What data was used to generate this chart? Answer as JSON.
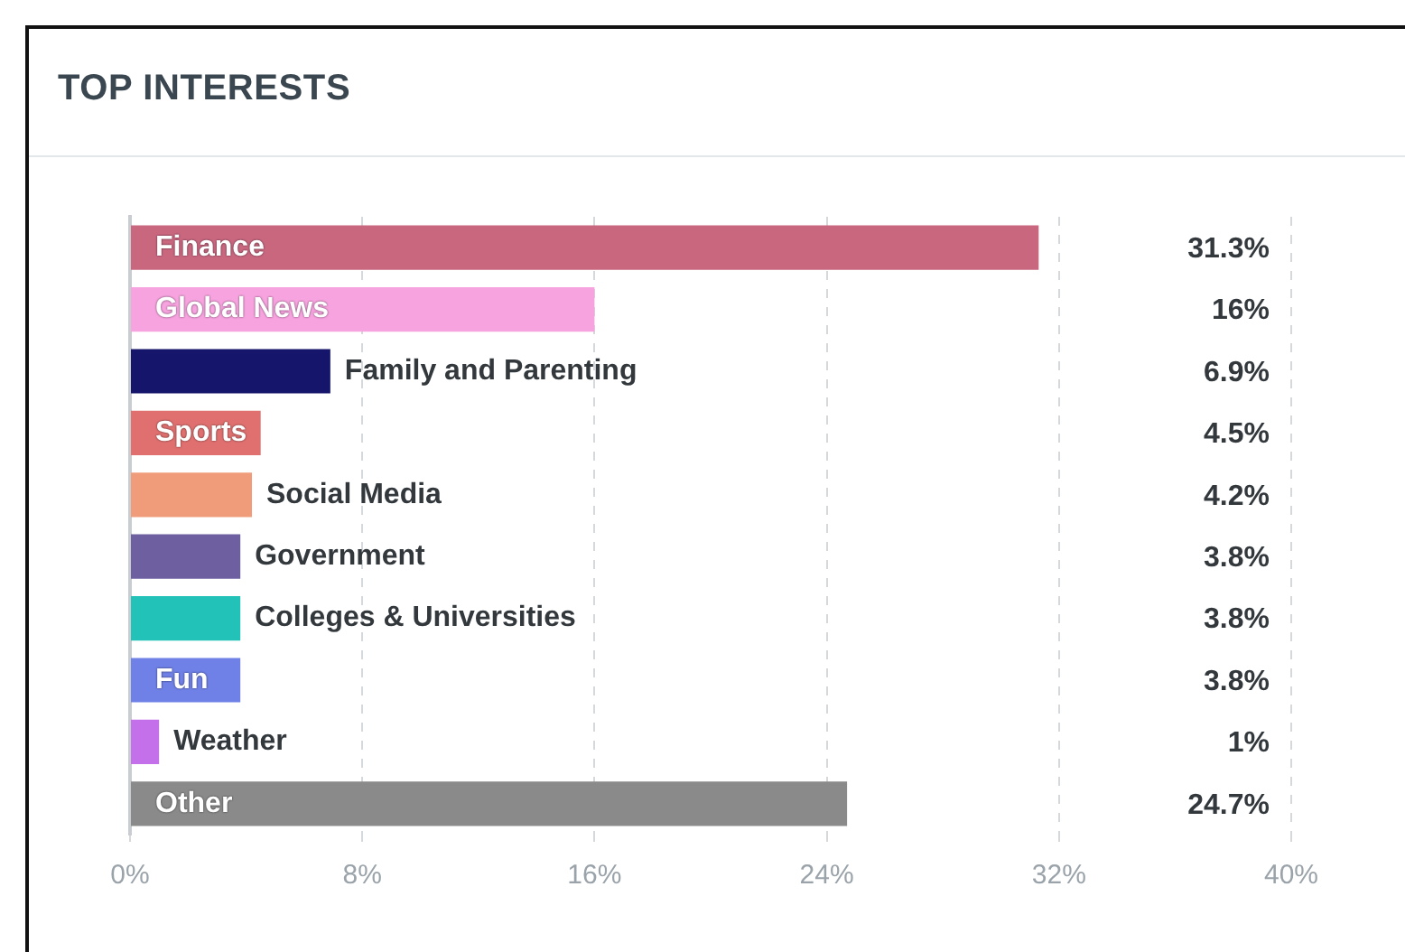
{
  "chart_data": {
    "type": "bar",
    "orientation": "horizontal",
    "title": "TOP INTERESTS",
    "categories": [
      "Finance",
      "Global News",
      "Family and Parenting",
      "Sports",
      "Social Media",
      "Government",
      "Colleges & Universities",
      "Fun",
      "Weather",
      "Other"
    ],
    "values": [
      31.3,
      16,
      6.9,
      4.5,
      4.2,
      3.8,
      3.8,
      3.8,
      1,
      24.7
    ],
    "colors": [
      "#c9677f",
      "#f7a3df",
      "#15156b",
      "#e07070",
      "#f09c7a",
      "#6d5fa0",
      "#22c2b8",
      "#6f80e6",
      "#c470ea",
      "#8a8a8a"
    ],
    "value_labels": [
      "31.3%",
      "16%",
      "6.9%",
      "4.5%",
      "4.2%",
      "3.8%",
      "3.8%",
      "3.8%",
      "1%",
      "24.7%"
    ],
    "xlim": [
      0,
      40
    ],
    "xticks": [
      {
        "value": 0,
        "label": "0%"
      },
      {
        "value": 8,
        "label": "8%"
      },
      {
        "value": 16,
        "label": "16%"
      },
      {
        "value": 24,
        "label": "24%"
      },
      {
        "value": 32,
        "label": "32%"
      },
      {
        "value": 40,
        "label": "40%"
      }
    ],
    "grid": "x",
    "legend": false
  }
}
